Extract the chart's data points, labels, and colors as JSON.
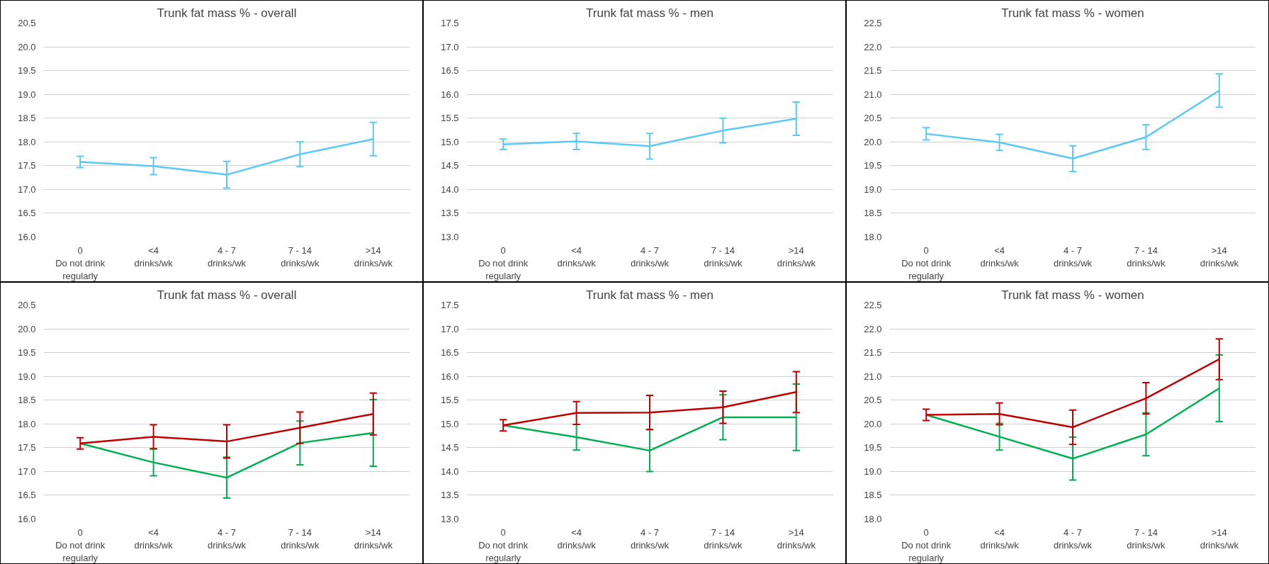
{
  "chart_data": [
    {
      "type": "line",
      "title": "Trunk fat mass % - overall",
      "categories": [
        "0\nDo not drink\nregularly",
        "<4\ndrinks/wk",
        "4 - 7\ndrinks/wk",
        "7 - 14\ndrinks/wk",
        ">14\ndrinks/wk"
      ],
      "ylim": [
        16.0,
        20.5
      ],
      "yticks": [
        {
          "value": 16,
          "label": "16.0"
        },
        16.5,
        {
          "value": 17,
          "label": "17.0"
        },
        17.5,
        {
          "value": 18,
          "label": "18.0"
        },
        18.5,
        {
          "value": 19,
          "label": "19.0"
        },
        19.5,
        {
          "value": 20,
          "label": "20.0"
        },
        20.5
      ],
      "grid": "y",
      "marker": "none",
      "line_style": "solid",
      "series": [
        {
          "color": "#5bc8f5",
          "values": [
            17.58,
            17.49,
            17.31,
            17.74,
            18.06
          ],
          "errors": [
            0.12,
            0.18,
            0.28,
            0.26,
            0.35
          ]
        }
      ]
    },
    {
      "type": "line",
      "title": "Trunk fat mass % - men",
      "categories": [
        "0\nDo not drink\nregularly",
        "<4\ndrinks/wk",
        "4 - 7\ndrinks/wk",
        "7 - 14\ndrinks/wk",
        ">14\ndrinks/wk"
      ],
      "ylim": [
        13.0,
        17.5
      ],
      "yticks": [
        {
          "value": 13,
          "label": "13.0"
        },
        13.5,
        {
          "value": 14,
          "label": "14.0"
        },
        14.5,
        {
          "value": 15,
          "label": "15.0"
        },
        15.5,
        {
          "value": 16,
          "label": "16.0"
        },
        16.5,
        {
          "value": 17,
          "label": "17.0"
        },
        17.5
      ],
      "grid": "y",
      "marker": "none",
      "line_style": "solid",
      "series": [
        {
          "color": "#5bc8f5",
          "values": [
            14.95,
            15.01,
            14.91,
            15.24,
            15.49
          ],
          "errors": [
            0.11,
            0.17,
            0.27,
            0.26,
            0.35
          ]
        }
      ]
    },
    {
      "type": "line",
      "title": "Trunk fat mass % - women",
      "categories": [
        "0\nDo not drink\nregularly",
        "<4\ndrinks/wk",
        "4 - 7\ndrinks/wk",
        "7 - 14\ndrinks/wk",
        ">14\ndrinks/wk"
      ],
      "ylim": [
        18.0,
        22.5
      ],
      "yticks": [
        {
          "value": 18,
          "label": "18.0"
        },
        18.5,
        {
          "value": 19,
          "label": "19.0"
        },
        19.5,
        {
          "value": 20,
          "label": "20.0"
        },
        20.5,
        {
          "value": 21,
          "label": "21.0"
        },
        21.5,
        {
          "value": 22,
          "label": "22.0"
        },
        22.5
      ],
      "grid": "y",
      "marker": "none",
      "line_style": "solid",
      "series": [
        {
          "color": "#5bc8f5",
          "values": [
            20.17,
            19.99,
            19.65,
            20.1,
            21.08
          ],
          "errors": [
            0.13,
            0.17,
            0.27,
            0.26,
            0.35
          ]
        }
      ]
    },
    {
      "type": "line",
      "title": "Trunk fat mass % - overall",
      "categories": [
        "0\nDo not drink\nregularly",
        "<4\ndrinks/wk",
        "4 - 7\ndrinks/wk",
        "7 - 14\ndrinks/wk",
        ">14\ndrinks/wk"
      ],
      "ylim": [
        16.0,
        20.5
      ],
      "yticks": [
        {
          "value": 16,
          "label": "16.0"
        },
        16.5,
        {
          "value": 17,
          "label": "17.0"
        },
        17.5,
        {
          "value": 18,
          "label": "18.0"
        },
        18.5,
        {
          "value": 19,
          "label": "19.0"
        },
        19.5,
        {
          "value": 20,
          "label": "20.0"
        },
        20.5
      ],
      "grid": "y",
      "marker": "none",
      "line_style": "solid",
      "series": [
        {
          "color": "#00b050",
          "values": [
            17.59,
            17.19,
            16.87,
            17.6,
            17.81
          ],
          "errors": [
            null,
            0.28,
            0.43,
            0.46,
            0.7
          ]
        },
        {
          "color": "#c00000",
          "values": [
            17.59,
            17.73,
            17.63,
            17.92,
            18.21
          ],
          "errors": [
            0.12,
            0.25,
            0.35,
            0.33,
            0.44
          ]
        }
      ]
    },
    {
      "type": "line",
      "title": "Trunk fat mass % - men",
      "categories": [
        "0\nDo not drink\nregularly",
        "<4\ndrinks/wk",
        "4 - 7\ndrinks/wk",
        "7 - 14\ndrinks/wk",
        ">14\ndrinks/wk"
      ],
      "ylim": [
        13.0,
        17.5
      ],
      "yticks": [
        {
          "value": 13,
          "label": "13.0"
        },
        13.5,
        {
          "value": 14,
          "label": "14.0"
        },
        14.5,
        {
          "value": 15,
          "label": "15.0"
        },
        15.5,
        {
          "value": 16,
          "label": "16.0"
        },
        16.5,
        {
          "value": 17,
          "label": "17.0"
        },
        17.5
      ],
      "grid": "y",
      "marker": "none",
      "line_style": "solid",
      "series": [
        {
          "color": "#00b050",
          "values": [
            14.97,
            14.72,
            14.44,
            15.14,
            15.14
          ],
          "errors": [
            null,
            0.27,
            0.44,
            0.47,
            0.7
          ]
        },
        {
          "color": "#c00000",
          "values": [
            14.97,
            15.23,
            15.24,
            15.35,
            15.67
          ],
          "errors": [
            0.12,
            0.24,
            0.36,
            0.34,
            0.43
          ]
        }
      ]
    },
    {
      "type": "line",
      "title": "Trunk fat mass % - women",
      "categories": [
        "0\nDo not drink\nregularly",
        "<4\ndrinks/wk",
        "4 - 7\ndrinks/wk",
        "7 - 14\ndrinks/wk",
        ">14\ndrinks/wk"
      ],
      "ylim": [
        18.0,
        22.5
      ],
      "yticks": [
        {
          "value": 18,
          "label": "18.0"
        },
        18.5,
        {
          "value": 19,
          "label": "19.0"
        },
        19.5,
        {
          "value": 20,
          "label": "20.0"
        },
        20.5,
        {
          "value": 21,
          "label": "21.0"
        },
        21.5,
        {
          "value": 22,
          "label": "22.0"
        },
        22.5
      ],
      "grid": "y",
      "marker": "none",
      "line_style": "solid",
      "series": [
        {
          "color": "#00b050",
          "values": [
            20.19,
            19.73,
            19.27,
            19.78,
            20.75
          ],
          "errors": [
            null,
            0.28,
            0.45,
            0.45,
            0.7
          ]
        },
        {
          "color": "#c00000",
          "values": [
            20.19,
            20.21,
            19.93,
            20.54,
            21.36
          ],
          "errors": [
            0.12,
            0.23,
            0.36,
            0.33,
            0.43
          ]
        }
      ]
    }
  ]
}
